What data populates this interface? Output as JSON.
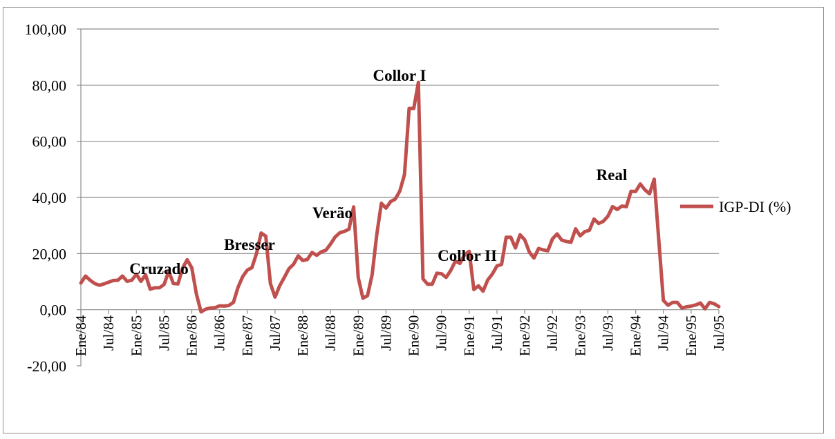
{
  "chart_data": {
    "type": "line",
    "title": "",
    "xlabel": "",
    "ylabel": "",
    "ylim": [
      -20,
      100
    ],
    "yticks": [
      "100,00",
      "80,00",
      "60,00",
      "40,00",
      "20,00",
      "0,00",
      "-20,00"
    ],
    "ytick_values": [
      100,
      80,
      60,
      40,
      20,
      0,
      -20
    ],
    "xticks": [
      "Ene/84",
      "Jul/84",
      "Ene/85",
      "Jul/85",
      "Ene/86",
      "Jul/86",
      "Ene/87",
      "Jul/87",
      "Ene/88",
      "Jul/88",
      "Ene/89",
      "Jul/89",
      "Ene/90",
      "Jul/90",
      "Ene/91",
      "Jul/91",
      "Ene/92",
      "Jul/92",
      "Ene/93",
      "Jul/93",
      "Ene/94",
      "Jul/94",
      "Ene/95",
      "Jul/95"
    ],
    "grid": true,
    "legend_position": "right",
    "series": [
      {
        "name": "IGP-DI (%)",
        "color": "#c0504d",
        "values": [
          9.5,
          12,
          10.5,
          9.3,
          8.7,
          9.2,
          9.8,
          10.4,
          10.5,
          12,
          10.1,
          10.5,
          12.6,
          10.1,
          12.4,
          7.3,
          7.8,
          7.8,
          9,
          13.7,
          9.3,
          9.2,
          14.8,
          17.8,
          14.9,
          5.5,
          -0.8,
          0.2,
          0.6,
          0.7,
          1.4,
          1.3,
          1.5,
          2.6,
          8,
          11.8,
          14.1,
          15,
          20.1,
          27.3,
          26.2,
          9.3,
          4.5,
          8.5,
          11.5,
          14.6,
          16.2,
          19.2,
          17.5,
          17.9,
          20.4,
          19.4,
          20.6,
          21.2,
          23.4,
          25.9,
          27.4,
          27.9,
          28.7,
          36.6,
          11.4,
          4.1,
          5,
          12.5,
          26.8,
          37.9,
          36.2,
          38.5,
          39.4,
          42.3,
          48.2,
          71.7,
          71.7,
          81,
          11,
          9.1,
          9.1,
          13,
          12.8,
          11.5,
          14,
          17.3,
          16.5,
          19.6,
          20.8,
          7.2,
          8.5,
          6.6,
          10.6,
          12.7,
          15.6,
          16.1,
          25.8,
          25.8,
          22,
          26.7,
          24.9,
          20.5,
          18.4,
          21.8,
          21.3,
          21,
          25.2,
          27,
          24.8,
          24.3,
          24,
          28.8,
          26.3,
          27.8,
          28.3,
          32.3,
          30.7,
          31.5,
          33.3,
          36.7,
          35.7,
          36.9,
          36.7,
          42.2,
          42.1,
          44.8,
          42.7,
          41.3,
          46.5,
          24.7,
          3.3,
          1.6,
          2.6,
          2.6,
          0.6,
          1,
          1.3,
          1.7,
          2.4,
          0.3,
          2.6,
          2.1,
          1.1
        ]
      }
    ],
    "annotations": [
      {
        "label": "Cruzado",
        "index": 24
      },
      {
        "label": "Bresser",
        "index": 40
      },
      {
        "label": "Verão",
        "index": 60
      },
      {
        "label": "Collor I",
        "index": 74
      },
      {
        "label": "Collor II",
        "index": 84
      },
      {
        "label": "Real",
        "index": 126
      }
    ]
  }
}
